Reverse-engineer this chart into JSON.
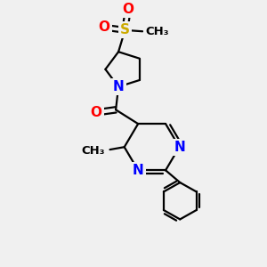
{
  "bg_color": "#f0f0f0",
  "bond_color": "#000000",
  "bond_width": 1.6,
  "atom_colors": {
    "N": "#0000ff",
    "O": "#ff0000",
    "S": "#ccaa00",
    "C": "#000000"
  },
  "font_size_atoms": 11,
  "font_size_me": 9.5
}
